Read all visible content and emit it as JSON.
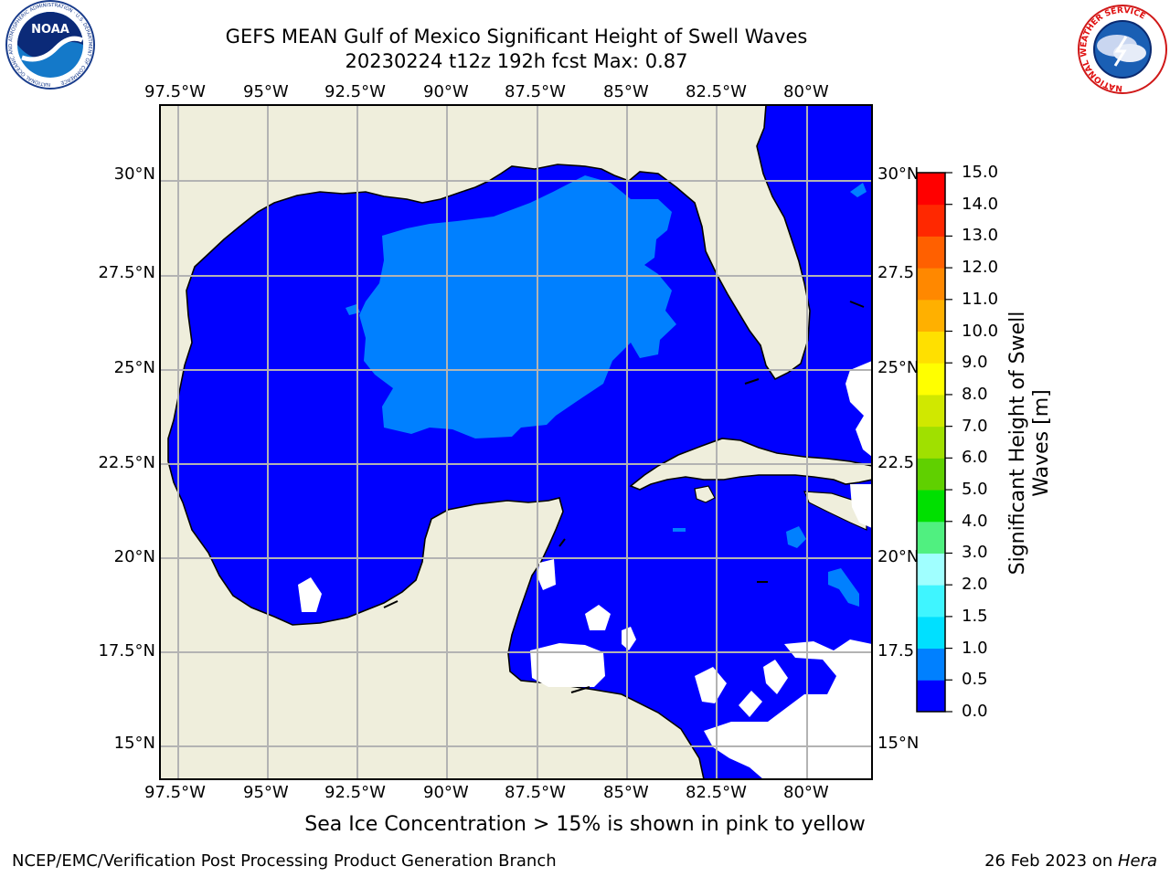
{
  "header": {
    "title": "GEFS MEAN Gulf of Mexico Significant Height of Swell Waves",
    "subtitle": "20230224 t12z 192h fcst   Max: 0.87"
  },
  "logos": {
    "noaa_text": "NOAA",
    "noaa_ring": "NATIONAL OCEANIC AND ATMOSPHERIC ADMINISTRATION · U.S. DEPARTMENT OF COMMERCE",
    "nws_ring": "NATIONAL WEATHER SERVICE"
  },
  "map": {
    "lon_labels": [
      "97.5°W",
      "95°W",
      "92.5°W",
      "90°W",
      "87.5°W",
      "85°W",
      "82.5°W",
      "80°W"
    ],
    "lat_labels_left": [
      "30°N",
      "27.5°N",
      "25°N",
      "22.5°N",
      "20°N",
      "17.5°N",
      "15°N"
    ],
    "lat_labels_right": [
      "30°N",
      "27.5",
      "25°N",
      "22.5",
      "20°N",
      "17.5",
      "15°N"
    ],
    "colors": {
      "land": "#efeedc",
      "ocean_low": "#0000ff",
      "ocean_mid": "#0080ff",
      "grid": "#b3b3b3",
      "coast": "#000000"
    }
  },
  "colorbar": {
    "label": "Significant Height of Swell Waves [m]",
    "label_line1": "Significant Height of Swell",
    "label_line2": "Waves [m]",
    "ticks": [
      "15.0",
      "14.0",
      "13.0",
      "12.0",
      "11.0",
      "10.0",
      "9.0",
      "8.0",
      "7.0",
      "6.0",
      "5.0",
      "4.0",
      "3.0",
      "2.0",
      "1.5",
      "1.0",
      "0.5",
      "0.0"
    ],
    "colors": [
      "#0000ff",
      "#0080ff",
      "#00e0ff",
      "#3ff5ff",
      "#a0ffff",
      "#50f080",
      "#00e000",
      "#60d000",
      "#a0e000",
      "#d0e800",
      "#ffff00",
      "#ffe000",
      "#ffb000",
      "#ff8800",
      "#ff6000",
      "#ff2800",
      "#ff0000"
    ]
  },
  "note": "Sea Ice Concentration > 15% is shown in pink to yellow",
  "footer": {
    "left": "NCEP/EMC/Verification Post Processing Product Generation Branch",
    "right_date": "26 Feb 2023 on ",
    "right_host": "Hera"
  }
}
